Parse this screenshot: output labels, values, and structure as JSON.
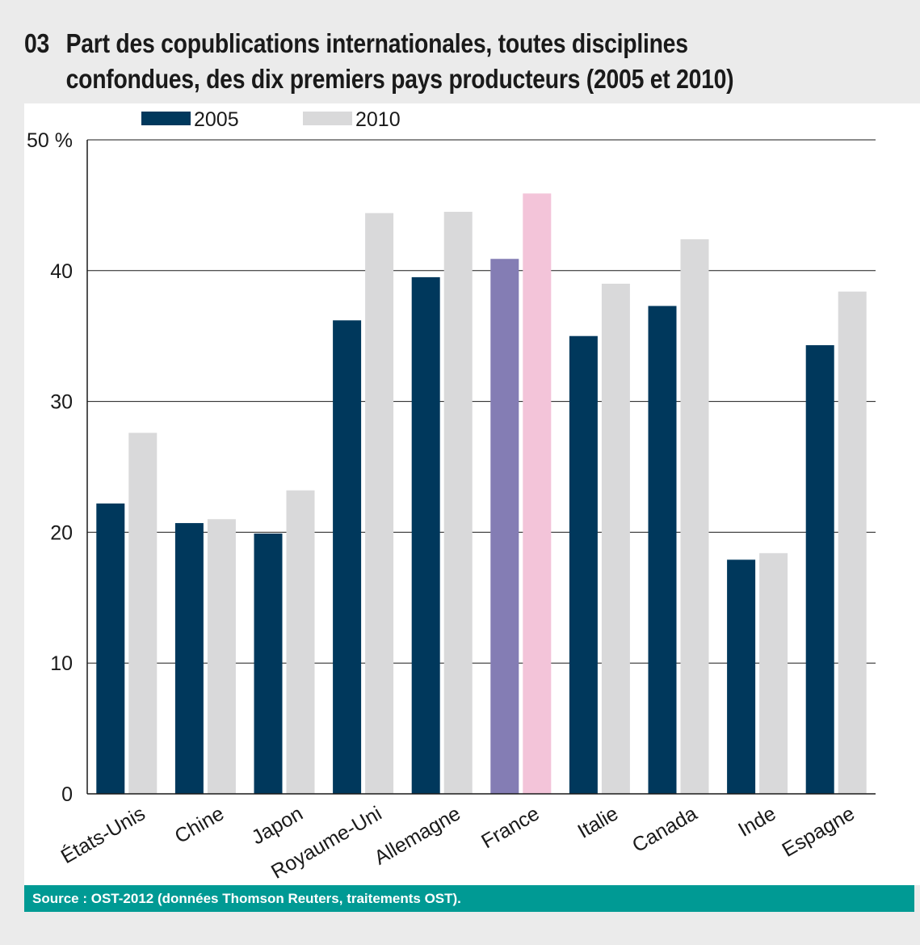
{
  "header": {
    "number": "03",
    "title": "Part des copublications internationales, toutes disciplines\nconfondues, des dix premiers pays producteurs (2005 et 2010)"
  },
  "footer": {
    "source": "Source : OST-2012 (données Thomson Reuters, traitements OST)."
  },
  "chart_data": {
    "type": "bar",
    "title": "Part des copublications internationales, toutes disciplines confondues, des dix premiers pays producteurs (2005 et 2010)",
    "categories": [
      "États-Unis",
      "Chine",
      "Japon",
      "Royaume-Uni",
      "Allemagne",
      "France",
      "Italie",
      "Canada",
      "Inde",
      "Espagne"
    ],
    "series": [
      {
        "name": "2005",
        "values": [
          22.2,
          20.7,
          19.9,
          36.2,
          39.5,
          40.9,
          35.0,
          37.3,
          17.9,
          34.3
        ],
        "color": "#00385c",
        "highlight_color": "#847db4"
      },
      {
        "name": "2010",
        "values": [
          27.6,
          21.0,
          23.2,
          44.4,
          44.5,
          45.9,
          39.0,
          42.4,
          18.4,
          38.4
        ],
        "color": "#d9d9da",
        "highlight_color": "#f3c4d9"
      }
    ],
    "highlight_category": "France",
    "y_ticks": [
      0,
      10,
      20,
      30,
      40,
      50
    ],
    "y_tick_labels": [
      "0",
      "10",
      "20",
      "30",
      "40",
      "50 %"
    ],
    "ylim": [
      0,
      50
    ],
    "xlabel": "",
    "ylabel": "",
    "grid": true,
    "legend_position": "top-left"
  }
}
